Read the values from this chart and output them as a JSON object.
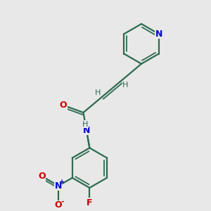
{
  "background_color": "#e8e8e8",
  "bond_color": "#2d6b4f",
  "nitrogen_color": "#0000cc",
  "oxygen_color": "#cc0000",
  "fluorine_color": "#cc0000",
  "figsize": [
    3.0,
    3.0
  ],
  "dpi": 100,
  "xlim": [
    0,
    10
  ],
  "ylim": [
    0,
    10
  ]
}
